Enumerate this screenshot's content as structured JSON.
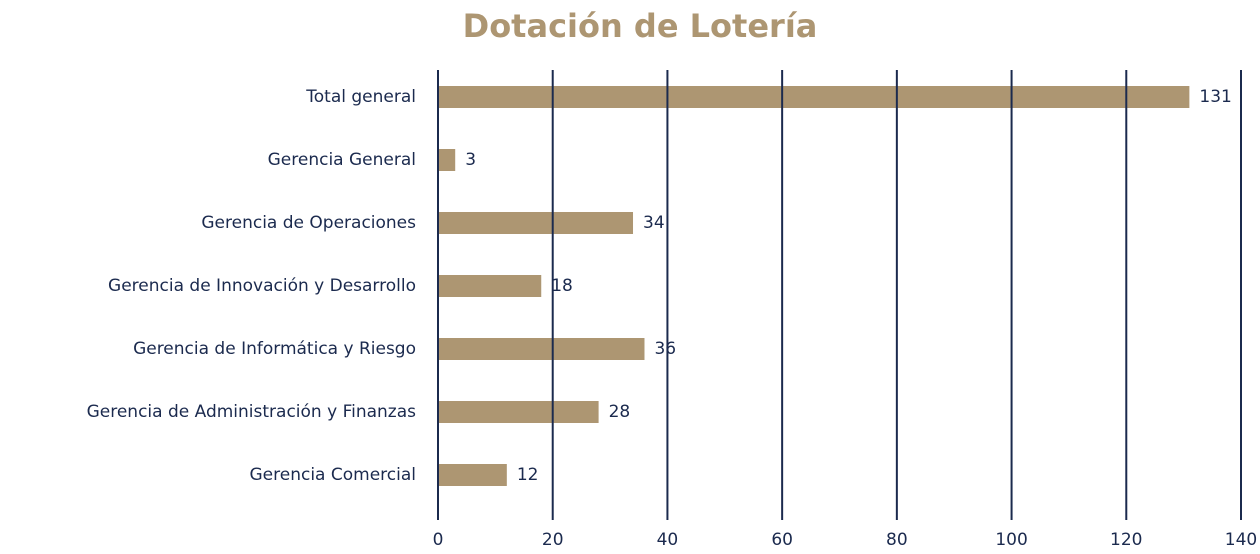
{
  "chart_data": {
    "type": "bar",
    "orientation": "horizontal",
    "title": "Dotación de Lotería",
    "categories": [
      "Total general",
      "Gerencia General",
      "Gerencia de Operaciones",
      "Gerencia de Innovación y Desarrollo",
      "Gerencia de Informática y Riesgo",
      "Gerencia de Administración y Finanzas",
      "Gerencia Comercial"
    ],
    "values": [
      131,
      3,
      34,
      18,
      36,
      28,
      12
    ],
    "color": "#ad9672",
    "grid_color": "#1b2a4e",
    "xlim": [
      0,
      140
    ],
    "xticks": [
      0,
      20,
      40,
      60,
      80,
      100,
      120,
      140
    ],
    "grid": true
  }
}
